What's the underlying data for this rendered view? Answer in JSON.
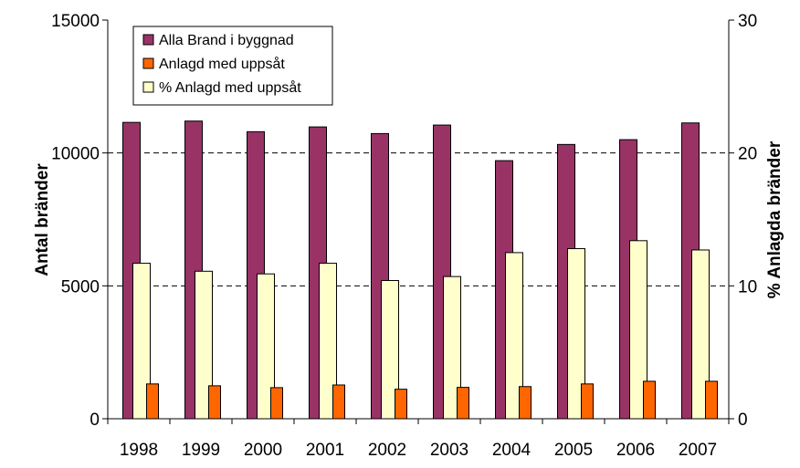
{
  "chart_data": {
    "type": "bar",
    "categories": [
      "1998",
      "1999",
      "2000",
      "2001",
      "2002",
      "2003",
      "2004",
      "2005",
      "2006",
      "2007"
    ],
    "series": [
      {
        "name": "Alla Brand i byggnad",
        "axis": "left",
        "color": "#993366",
        "values": [
          11150,
          11200,
          10800,
          10980,
          10730,
          11050,
          9710,
          10320,
          10500,
          11130
        ]
      },
      {
        "name": "Anlagd med uppsåt",
        "axis": "left",
        "color": "#ff6600",
        "values": [
          1310,
          1240,
          1170,
          1270,
          1110,
          1180,
          1210,
          1310,
          1410,
          1410
        ]
      },
      {
        "name": "% Anlagd med uppsåt",
        "axis": "right",
        "color": "#ffffcc",
        "values": [
          11.7,
          11.1,
          10.9,
          11.7,
          10.4,
          10.7,
          12.5,
          12.8,
          13.4,
          12.7
        ]
      }
    ],
    "ylabel": "Antal bränder",
    "y2label": "% Anlagda bränder",
    "ylim": [
      0,
      15000
    ],
    "y2lim": [
      0,
      30
    ],
    "yticks": [
      "0",
      "5000",
      "10000",
      "15000"
    ],
    "y2ticks": [
      "0",
      "10",
      "20",
      "30"
    ],
    "grid": "dashed horizontal at 5000 and 10000",
    "legend_position": "top-left"
  }
}
